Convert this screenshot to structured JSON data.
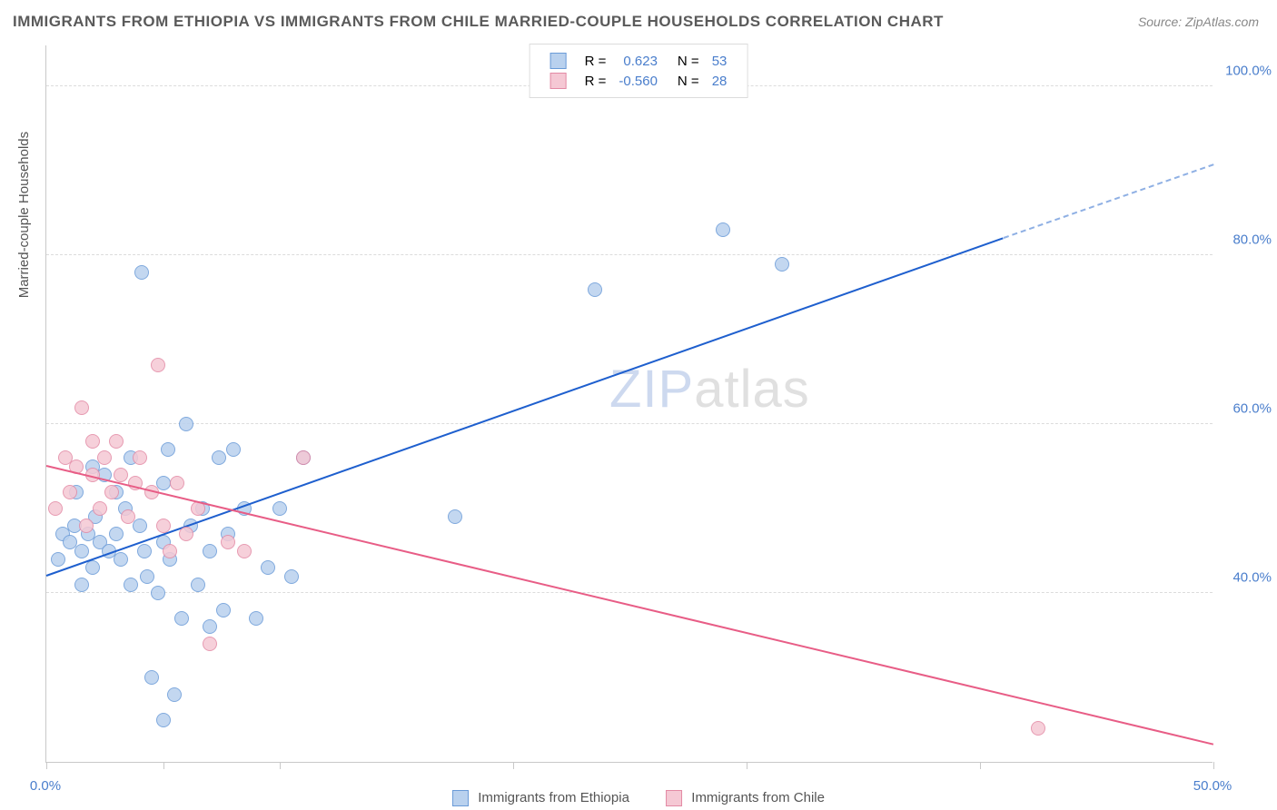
{
  "title": "IMMIGRANTS FROM ETHIOPIA VS IMMIGRANTS FROM CHILE MARRIED-COUPLE HOUSEHOLDS CORRELATION CHART",
  "source": "Source: ZipAtlas.com",
  "watermark_prefix": "ZIP",
  "watermark_suffix": "atlas",
  "chart": {
    "type": "scatter",
    "background_color": "#ffffff",
    "grid_color": "#dcdcdc",
    "axis_color": "#c9c9c9",
    "tick_label_color": "#4a7ecc",
    "label_fontsize": 15,
    "title_fontsize": 17,
    "marker_size": 16,
    "xlim": [
      0,
      50
    ],
    "ylim": [
      20,
      105
    ],
    "ytick_values": [
      40,
      60,
      80,
      100
    ],
    "ytick_labels": [
      "40.0%",
      "60.0%",
      "80.0%",
      "100.0%"
    ],
    "xtick_values": [
      0,
      5,
      10,
      20,
      30,
      40,
      50
    ],
    "xtick_labels": [
      "0.0%",
      "",
      "",
      "",
      "",
      "",
      "50.0%"
    ],
    "yaxis_title": "Married-couple Households"
  },
  "series": [
    {
      "name": "Immigrants from Ethiopia",
      "marker_fill": "#b9d1ee",
      "marker_stroke": "#6a9bd8",
      "trend_color": "#1e5fce",
      "trend_dash_color": "#8fb0e4",
      "R": "0.623",
      "N": "53",
      "trend_x0": 0,
      "trend_y0": 42,
      "trend_x1": 41,
      "trend_y1": 82,
      "trend_dash_x0": 41,
      "trend_dash_y0": 82,
      "trend_dash_x1": 50,
      "trend_dash_y1": 90.7,
      "points": [
        [
          0.5,
          44
        ],
        [
          0.7,
          47
        ],
        [
          1.0,
          46
        ],
        [
          1.2,
          48
        ],
        [
          1.3,
          52
        ],
        [
          1.5,
          41
        ],
        [
          1.5,
          45
        ],
        [
          1.8,
          47
        ],
        [
          2.0,
          55
        ],
        [
          2.0,
          43
        ],
        [
          2.1,
          49
        ],
        [
          2.3,
          46
        ],
        [
          2.5,
          54
        ],
        [
          2.7,
          45
        ],
        [
          3.0,
          47
        ],
        [
          3.0,
          52
        ],
        [
          3.2,
          44
        ],
        [
          3.4,
          50
        ],
        [
          3.6,
          56
        ],
        [
          3.6,
          41
        ],
        [
          4.0,
          48
        ],
        [
          4.1,
          78
        ],
        [
          4.2,
          45
        ],
        [
          4.5,
          30
        ],
        [
          4.8,
          40
        ],
        [
          5.0,
          46
        ],
        [
          5.0,
          53
        ],
        [
          5.2,
          57
        ],
        [
          5.3,
          44
        ],
        [
          5.5,
          28
        ],
        [
          5.8,
          37
        ],
        [
          6.0,
          60
        ],
        [
          6.2,
          48
        ],
        [
          6.5,
          41
        ],
        [
          6.7,
          50
        ],
        [
          7.0,
          45
        ],
        [
          7.0,
          36
        ],
        [
          7.4,
          56
        ],
        [
          7.6,
          38
        ],
        [
          7.8,
          47
        ],
        [
          8.0,
          57
        ],
        [
          8.5,
          50
        ],
        [
          9.0,
          37
        ],
        [
          9.5,
          43
        ],
        [
          10.0,
          50
        ],
        [
          10.5,
          42
        ],
        [
          11.0,
          56
        ],
        [
          17.5,
          49
        ],
        [
          23.5,
          76
        ],
        [
          29.0,
          83
        ],
        [
          31.5,
          79
        ],
        [
          5.0,
          25
        ],
        [
          4.3,
          42
        ]
      ]
    },
    {
      "name": "Immigrants from Chile",
      "marker_fill": "#f5c8d4",
      "marker_stroke": "#e38aa5",
      "trend_color": "#e85d86",
      "R": "-0.560",
      "N": "28",
      "trend_x0": 0,
      "trend_y0": 55,
      "trend_x1": 50,
      "trend_y1": 22,
      "points": [
        [
          0.4,
          50
        ],
        [
          0.8,
          56
        ],
        [
          1.0,
          52
        ],
        [
          1.3,
          55
        ],
        [
          1.5,
          62
        ],
        [
          1.7,
          48
        ],
        [
          2.0,
          58
        ],
        [
          2.0,
          54
        ],
        [
          2.3,
          50
        ],
        [
          2.5,
          56
        ],
        [
          2.8,
          52
        ],
        [
          3.0,
          58
        ],
        [
          3.2,
          54
        ],
        [
          3.5,
          49
        ],
        [
          3.8,
          53
        ],
        [
          4.0,
          56
        ],
        [
          4.5,
          52
        ],
        [
          4.8,
          67
        ],
        [
          5.0,
          48
        ],
        [
          5.3,
          45
        ],
        [
          5.6,
          53
        ],
        [
          6.0,
          47
        ],
        [
          6.5,
          50
        ],
        [
          7.0,
          34
        ],
        [
          7.8,
          46
        ],
        [
          8.5,
          45
        ],
        [
          11.0,
          56
        ],
        [
          42.5,
          24
        ]
      ]
    }
  ],
  "legend_top_label_R": "R =",
  "legend_top_label_N": "N =",
  "legend_top_value_color": "#4a7ecc"
}
